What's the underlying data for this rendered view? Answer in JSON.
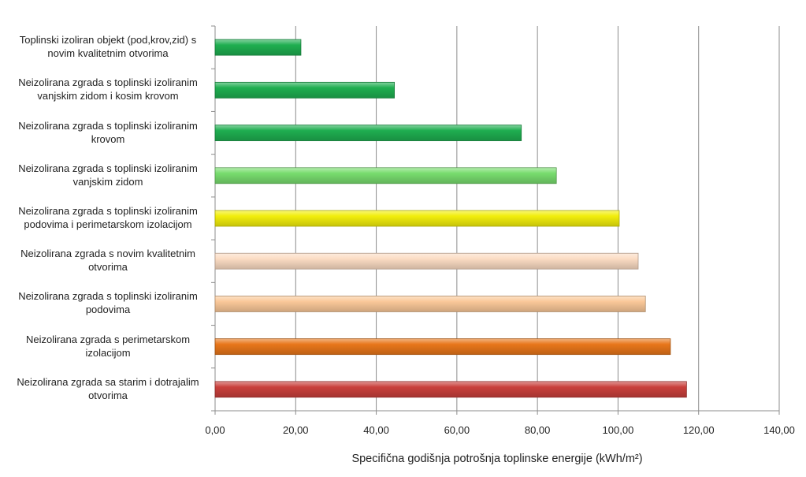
{
  "chart_data": {
    "type": "bar",
    "orientation": "horizontal",
    "categories": [
      "Toplinski izoliran objekt (pod,krov,zid) s novim kvalitetnim otvorima",
      "Neizolirana zgrada s toplinski izoliranim vanjskim zidom i kosim krovom",
      "Neizolirana zgrada s toplinski izoliranim krovom",
      "Neizolirana zgrada s toplinski izoliranim vanjskim zidom",
      "Neizolirana zgrada s toplinski izoliranim podovima i perimetarskom izolacijom",
      "Neizolirana zgrada s novim kvalitetnim otvorima",
      "Neizolirana zgrada s toplinski izoliranim podovima",
      "Neizolirana zgrada s perimetarskom izolacijom",
      "Neizolirana zgrada sa starim i dotrajalim otvorima"
    ],
    "category_lines": [
      [
        "Toplinski izoliran objekt (pod,krov,zid) s",
        "novim kvalitetnim otvorima"
      ],
      [
        "Neizolirana zgrada s toplinski izoliranim",
        "vanjskim zidom i kosim krovom"
      ],
      [
        "Neizolirana zgrada s toplinski izoliranim",
        "krovom"
      ],
      [
        "Neizolirana zgrada s toplinski izoliranim",
        "vanjskim zidom"
      ],
      [
        "Neizolirana zgrada s toplinski izoliranim",
        "podovima i perimetarskom izolacijom"
      ],
      [
        "Neizolirana zgrada s novim kvalitetnim",
        "otvorima"
      ],
      [
        "Neizolirana zgrada s toplinski izoliranim",
        "podovima"
      ],
      [
        "Neizolirana zgrada s perimetarskom",
        "izolacijom"
      ],
      [
        "Neizolirana zgrada sa starim i dotrajalim",
        "otvorima"
      ]
    ],
    "values": [
      21.3,
      44.5,
      76.0,
      84.7,
      100.3,
      105.0,
      106.8,
      113.0,
      117.0
    ],
    "colors": [
      "#1fae50",
      "#1fae50",
      "#1fae50",
      "#78dc6e",
      "#f2ee0c",
      "#fbdcc3",
      "#fac899",
      "#e8761a",
      "#c9403c"
    ],
    "x_ticks": [
      "0,00",
      "20,00",
      "40,00",
      "60,00",
      "80,00",
      "100,00",
      "120,00",
      "140,00"
    ],
    "xlim": [
      0,
      140
    ],
    "xlabel": "Specifična godišnja potrošnja toplinske energije  (kWh/m²)",
    "ylabel": "",
    "title": "",
    "grid": true,
    "legend": "none"
  }
}
